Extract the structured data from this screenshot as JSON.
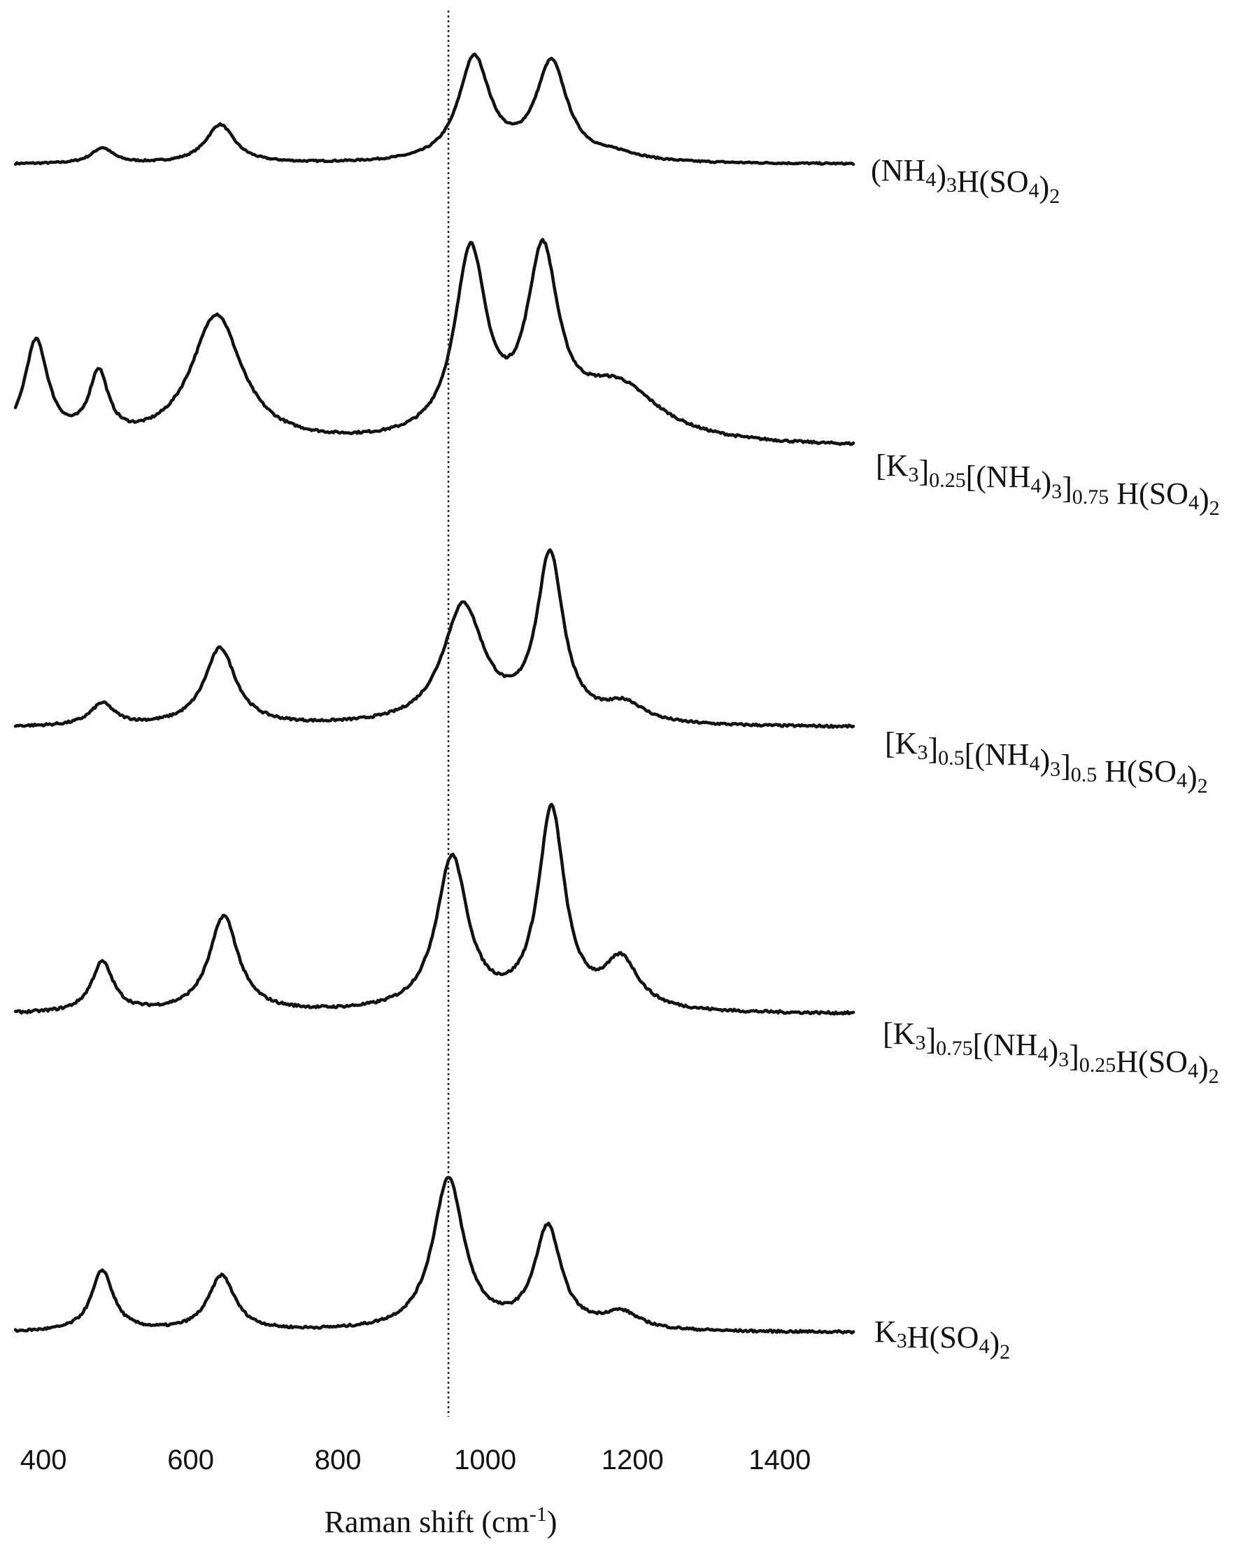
{
  "chart_data": {
    "type": "line",
    "title": "",
    "xlabel": "Raman shift (cm",
    "xlabel_sup": "-1",
    "xlabel_close": ")",
    "ylabel": "",
    "xlim": [
      360,
      1500
    ],
    "ylim": [
      0,
      1
    ],
    "x_ticks": [
      400,
      600,
      800,
      1000,
      1200,
      1400
    ],
    "x_tick_labels": [
      "400",
      "600",
      "800",
      "1000",
      "1200",
      "1400"
    ],
    "grid": false,
    "legend": "none",
    "reference_line": {
      "x": 950
    },
    "series": [
      {
        "label_parts": [
          [
            "(NH",
            ""
          ],
          [
            "4",
            "sub"
          ],
          [
            ")",
            ""
          ],
          [
            "3",
            "sub"
          ],
          [
            "H(SO",
            ""
          ],
          [
            "4",
            "sub"
          ],
          [
            ")",
            ""
          ],
          [
            "2",
            "sub"
          ]
        ],
        "baseline": 0.0,
        "peaks": [
          {
            "x": 480,
            "h": 0.12,
            "w": 18
          },
          {
            "x": 640,
            "h": 0.3,
            "w": 24
          },
          {
            "x": 985,
            "h": 0.8,
            "w": 26
          },
          {
            "x": 1090,
            "h": 0.76,
            "w": 26
          },
          {
            "x": 1180,
            "h": 0.05,
            "w": 40
          }
        ]
      },
      {
        "label_parts": [
          [
            "[K",
            ""
          ],
          [
            "3",
            "sub"
          ],
          [
            "]",
            ""
          ],
          [
            "0.25",
            "sub"
          ],
          [
            "[(NH",
            ""
          ],
          [
            "4",
            "sub"
          ],
          [
            ")",
            ""
          ],
          [
            "3",
            "sub"
          ],
          [
            "]",
            ""
          ],
          [
            "0.75",
            "sub"
          ],
          [
            " H(SO",
            ""
          ],
          [
            "4",
            "sub"
          ],
          [
            ")",
            ""
          ],
          [
            "2",
            "sub"
          ]
        ],
        "baseline": 0.0,
        "peaks": [
          {
            "x": 390,
            "h": 0.55,
            "w": 20
          },
          {
            "x": 475,
            "h": 0.35,
            "w": 16
          },
          {
            "x": 635,
            "h": 0.7,
            "w": 42
          },
          {
            "x": 980,
            "h": 1.0,
            "w": 26
          },
          {
            "x": 1078,
            "h": 0.95,
            "w": 26
          },
          {
            "x": 1180,
            "h": 0.3,
            "w": 70
          }
        ]
      },
      {
        "label_parts": [
          [
            "[K",
            ""
          ],
          [
            "3",
            "sub"
          ],
          [
            "]",
            ""
          ],
          [
            "0.5",
            "sub"
          ],
          [
            "[(NH",
            ""
          ],
          [
            "4",
            "sub"
          ],
          [
            ")",
            ""
          ],
          [
            "3",
            "sub"
          ],
          [
            "]",
            ""
          ],
          [
            "0.5",
            "sub"
          ],
          [
            " H(SO",
            ""
          ],
          [
            "4",
            "sub"
          ],
          [
            ")",
            ""
          ],
          [
            "2",
            "sub"
          ]
        ],
        "baseline": 0.0,
        "peaks": [
          {
            "x": 480,
            "h": 0.12,
            "w": 20
          },
          {
            "x": 640,
            "h": 0.42,
            "w": 26
          },
          {
            "x": 970,
            "h": 0.64,
            "w": 34
          },
          {
            "x": 1088,
            "h": 0.9,
            "w": 22
          },
          {
            "x": 1190,
            "h": 0.1,
            "w": 32
          }
        ]
      },
      {
        "label_parts": [
          [
            "[K",
            ""
          ],
          [
            "3",
            "sub"
          ],
          [
            "]",
            ""
          ],
          [
            "0.75",
            "sub"
          ],
          [
            "[(NH",
            ""
          ],
          [
            "4",
            "sub"
          ],
          [
            ")",
            ""
          ],
          [
            "3",
            "sub"
          ],
          [
            "]",
            ""
          ],
          [
            "0.25",
            "sub"
          ],
          [
            "H(SO",
            ""
          ],
          [
            "4",
            "sub"
          ],
          [
            ")",
            ""
          ],
          [
            "2",
            "sub"
          ]
        ],
        "baseline": 0.0,
        "peaks": [
          {
            "x": 480,
            "h": 0.24,
            "w": 18
          },
          {
            "x": 645,
            "h": 0.46,
            "w": 24
          },
          {
            "x": 955,
            "h": 0.73,
            "w": 26
          },
          {
            "x": 1090,
            "h": 0.95,
            "w": 22
          },
          {
            "x": 1185,
            "h": 0.23,
            "w": 28
          }
        ]
      },
      {
        "label_parts": [
          [
            "K",
            ""
          ],
          [
            "3",
            "sub"
          ],
          [
            "H(SO",
            ""
          ],
          [
            "4",
            "sub"
          ],
          [
            ")",
            ""
          ],
          [
            "2",
            "sub"
          ]
        ],
        "baseline": 0.0,
        "peaks": [
          {
            "x": 480,
            "h": 0.33,
            "w": 18
          },
          {
            "x": 642,
            "h": 0.3,
            "w": 22
          },
          {
            "x": 950,
            "h": 0.82,
            "w": 26
          },
          {
            "x": 1085,
            "h": 0.55,
            "w": 22
          },
          {
            "x": 1185,
            "h": 0.09,
            "w": 30
          }
        ]
      }
    ]
  }
}
